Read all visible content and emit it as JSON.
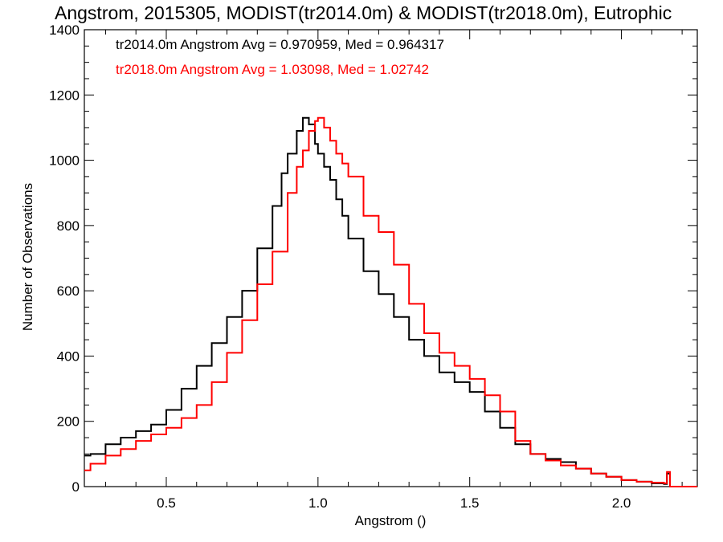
{
  "chart_data": {
    "type": "line",
    "title": "Angstrom, 2015305, MODIST(tr2014.0m) & MODIST(tr2018.0m), Eutrophic",
    "xlabel": "Angstrom ()",
    "ylabel": "Number of Observations",
    "xlim": [
      0.23,
      2.25
    ],
    "ylim": [
      0,
      1400
    ],
    "xticks": [
      "0.5",
      "1.0",
      "1.5",
      "2.0"
    ],
    "xtick_values": [
      0.5,
      1.0,
      1.5,
      2.0
    ],
    "yticks": [
      "0",
      "200",
      "400",
      "600",
      "800",
      "1000",
      "1200",
      "1400"
    ],
    "ytick_values": [
      0,
      200,
      400,
      600,
      800,
      1000,
      1200,
      1400
    ],
    "annotations": [
      {
        "text": "tr2014.0m Angstrom Avg = 0.970959, Med = 0.964317",
        "color": "#000000"
      },
      {
        "text": "tr2018.0m Angstrom Avg = 1.03098, Med = 1.02742",
        "color": "#ff0000"
      }
    ],
    "series": [
      {
        "color": "#000000",
        "x": [
          0.23,
          0.25,
          0.3,
          0.35,
          0.4,
          0.45,
          0.5,
          0.55,
          0.6,
          0.65,
          0.7,
          0.75,
          0.8,
          0.85,
          0.88,
          0.9,
          0.93,
          0.95,
          0.97,
          0.99,
          1.0,
          1.02,
          1.04,
          1.06,
          1.08,
          1.1,
          1.15,
          1.2,
          1.25,
          1.3,
          1.35,
          1.4,
          1.45,
          1.5,
          1.55,
          1.6,
          1.65,
          1.7,
          1.75,
          1.8,
          1.85,
          1.9,
          1.95,
          2.0,
          2.05,
          2.1,
          2.14,
          2.15,
          2.16,
          2.25
        ],
        "y": [
          95,
          100,
          130,
          150,
          170,
          190,
          235,
          300,
          370,
          440,
          520,
          600,
          730,
          860,
          960,
          1020,
          1090,
          1130,
          1110,
          1050,
          1020,
          980,
          940,
          880,
          830,
          760,
          660,
          590,
          520,
          450,
          400,
          350,
          320,
          290,
          230,
          180,
          130,
          100,
          85,
          75,
          55,
          40,
          30,
          20,
          15,
          10,
          8,
          40,
          0,
          0
        ]
      },
      {
        "color": "#ff0000",
        "x": [
          0.23,
          0.25,
          0.3,
          0.35,
          0.4,
          0.45,
          0.5,
          0.55,
          0.6,
          0.65,
          0.7,
          0.75,
          0.8,
          0.85,
          0.9,
          0.93,
          0.95,
          0.97,
          0.99,
          1.0,
          1.02,
          1.04,
          1.06,
          1.08,
          1.1,
          1.15,
          1.2,
          1.25,
          1.3,
          1.35,
          1.4,
          1.45,
          1.5,
          1.55,
          1.6,
          1.65,
          1.7,
          1.75,
          1.8,
          1.85,
          1.9,
          1.95,
          2.0,
          2.05,
          2.1,
          2.14,
          2.15,
          2.16,
          2.25
        ],
        "y": [
          50,
          70,
          95,
          115,
          140,
          160,
          180,
          210,
          250,
          320,
          410,
          510,
          620,
          720,
          900,
          980,
          1030,
          1090,
          1120,
          1130,
          1100,
          1060,
          1020,
          990,
          950,
          830,
          780,
          680,
          560,
          470,
          410,
          370,
          330,
          280,
          230,
          140,
          100,
          80,
          65,
          55,
          40,
          30,
          20,
          15,
          12,
          10,
          45,
          0,
          0
        ]
      }
    ]
  }
}
